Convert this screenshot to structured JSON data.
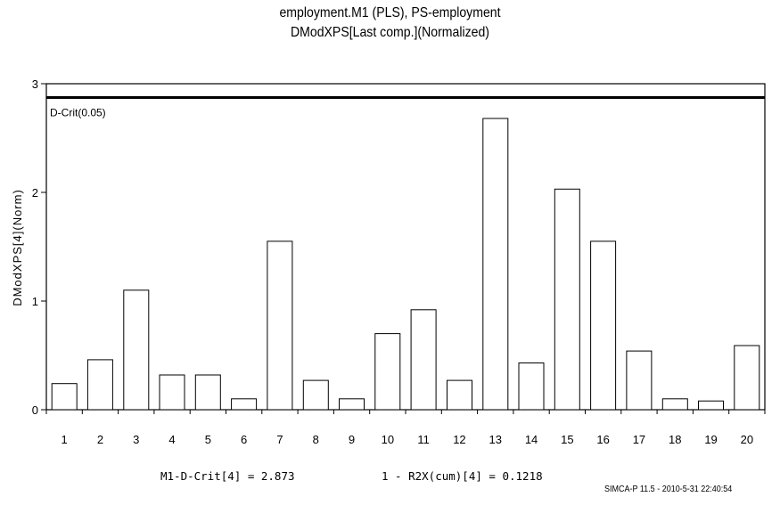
{
  "chart_data": {
    "type": "bar",
    "title": "employment.M1 (PLS), PS-employment",
    "subtitle": "DModXPS[Last comp.](Normalized)",
    "xlabel": "",
    "ylabel": "DModXPS[4](Norm)",
    "categories": [
      "1",
      "2",
      "3",
      "4",
      "5",
      "6",
      "7",
      "8",
      "9",
      "10",
      "11",
      "12",
      "13",
      "14",
      "15",
      "16",
      "17",
      "18",
      "19",
      "20"
    ],
    "values": [
      0.24,
      0.46,
      1.1,
      0.32,
      0.32,
      0.1,
      1.55,
      0.27,
      0.1,
      0.7,
      0.92,
      0.27,
      2.68,
      0.43,
      2.03,
      1.55,
      0.54,
      0.1,
      0.08,
      0.59
    ],
    "ylim": [
      0,
      3
    ],
    "yticks": [
      0,
      1,
      2,
      3
    ],
    "bar_fill": "#ffffff",
    "bar_stroke": "#000000",
    "grid": false,
    "reference_line": {
      "label": "D-Crit(0.05)",
      "value": 2.873
    }
  },
  "footer": {
    "dcrit": "M1-D-Crit[4] = 2.873",
    "r2x": "1 - R2X(cum)[4] = 0.1218",
    "software": "SIMCA-P 11.5 - 2010-5-31 22:40:54"
  }
}
